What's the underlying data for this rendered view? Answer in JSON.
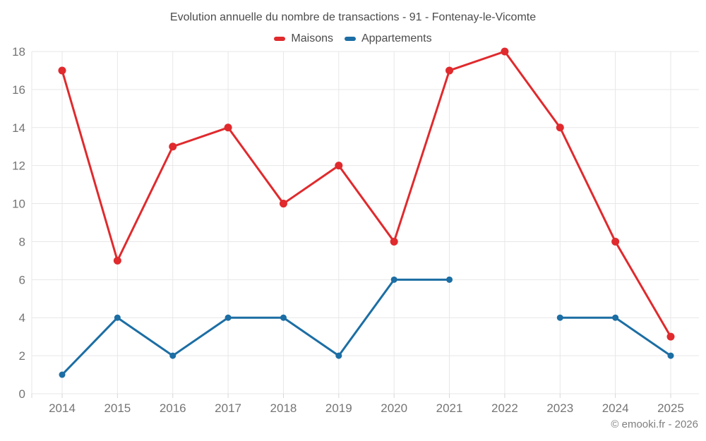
{
  "header": {
    "title": "Evolution annuelle du nombre de transactions - 91 - Fontenay-le-Vicomte"
  },
  "legend": [
    {
      "label": "Maisons",
      "color": "#e02a2d"
    },
    {
      "label": "Appartements",
      "color": "#1c6ea4"
    }
  ],
  "footer": {
    "credit": "© emooki.fr - 2026"
  },
  "chart_data": {
    "type": "line",
    "title": "Evolution annuelle du nombre de transactions - 91 - Fontenay-le-Vicomte",
    "categories": [
      "2014",
      "2015",
      "2016",
      "2017",
      "2018",
      "2019",
      "2020",
      "2021",
      "2022",
      "2023",
      "2024",
      "2025"
    ],
    "series": [
      {
        "name": "Maisons",
        "color": "#e02a2d",
        "values": [
          17,
          7,
          13,
          14,
          10,
          12,
          8,
          17,
          18,
          14,
          8,
          3
        ]
      },
      {
        "name": "Appartements",
        "color": "#1c6ea4",
        "values": [
          1,
          4,
          2,
          4,
          4,
          2,
          6,
          6,
          null,
          4,
          4,
          2
        ]
      }
    ],
    "xlabel": "",
    "ylabel": "",
    "ylim": [
      0,
      18
    ],
    "ytick_step": 2,
    "grid": true,
    "legend_position": "top",
    "colors": {
      "gridline": "#e7e7e7",
      "tick": "#d6d6d6",
      "axis_label": "#757575"
    }
  }
}
